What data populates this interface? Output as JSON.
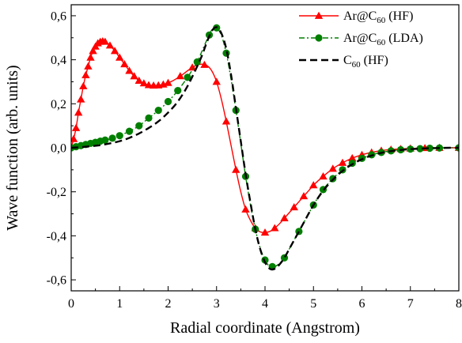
{
  "chart_data": {
    "type": "line",
    "xlabel": "Radial coordinate (Angstrom)",
    "ylabel": "Wave function (arb. units)",
    "xlim": [
      0,
      8
    ],
    "ylim": [
      -0.65,
      0.65
    ],
    "x_ticks": [
      0,
      1,
      2,
      3,
      4,
      5,
      6,
      7,
      8
    ],
    "y_ticks": [
      -0.6,
      -0.4,
      -0.2,
      0.0,
      0.2,
      0.4,
      0.6
    ],
    "x_tick_labels": [
      "0",
      "1",
      "2",
      "3",
      "4",
      "5",
      "6",
      "7",
      "8"
    ],
    "y_tick_labels": [
      "-0,6",
      "-0,4",
      "-0,2",
      "0,0",
      "0,2",
      "0,4",
      "0,6"
    ],
    "legend_position": "top-right",
    "grid": false,
    "series": [
      {
        "name": "Ar@C60 (HF)",
        "legend": {
          "pre": "Ar@C",
          "sub": "60",
          "post": " (HF)"
        },
        "color": "#ff0000",
        "line_style": "solid",
        "marker": "triangle",
        "x": [
          0.0,
          0.05,
          0.1,
          0.15,
          0.2,
          0.25,
          0.3,
          0.35,
          0.4,
          0.45,
          0.5,
          0.55,
          0.6,
          0.65,
          0.7,
          0.75,
          0.8,
          0.9,
          1.0,
          1.1,
          1.2,
          1.3,
          1.4,
          1.5,
          1.6,
          1.7,
          1.8,
          1.9,
          2.0,
          2.1,
          2.2,
          2.3,
          2.4,
          2.5,
          2.6,
          2.7,
          2.8,
          2.9,
          3.0,
          3.1,
          3.2,
          3.3,
          3.4,
          3.5,
          3.6,
          3.7,
          3.8,
          3.9,
          4.0,
          4.1,
          4.2,
          4.3,
          4.4,
          4.5,
          4.6,
          4.7,
          4.8,
          4.9,
          5.0,
          5.2,
          5.4,
          5.6,
          5.8,
          6.0,
          6.2,
          6.4,
          6.6,
          6.8,
          7.0,
          7.3,
          7.6,
          8.0
        ],
        "y": [
          0.0,
          0.04,
          0.09,
          0.16,
          0.22,
          0.28,
          0.33,
          0.37,
          0.41,
          0.44,
          0.46,
          0.475,
          0.482,
          0.484,
          0.482,
          0.475,
          0.465,
          0.44,
          0.41,
          0.38,
          0.35,
          0.325,
          0.305,
          0.293,
          0.285,
          0.283,
          0.284,
          0.288,
          0.295,
          0.305,
          0.318,
          0.333,
          0.35,
          0.365,
          0.376,
          0.38,
          0.374,
          0.35,
          0.3,
          0.22,
          0.12,
          0.01,
          -0.1,
          -0.2,
          -0.28,
          -0.33,
          -0.365,
          -0.382,
          -0.385,
          -0.38,
          -0.365,
          -0.345,
          -0.32,
          -0.295,
          -0.27,
          -0.245,
          -0.22,
          -0.195,
          -0.17,
          -0.13,
          -0.095,
          -0.068,
          -0.047,
          -0.032,
          -0.021,
          -0.013,
          -0.008,
          -0.005,
          -0.003,
          -0.001,
          0.0,
          0.0
        ],
        "markers_x": [
          0.05,
          0.1,
          0.15,
          0.2,
          0.25,
          0.3,
          0.35,
          0.4,
          0.45,
          0.5,
          0.55,
          0.6,
          0.65,
          0.7,
          0.8,
          0.9,
          1.0,
          1.1,
          1.2,
          1.3,
          1.4,
          1.5,
          1.6,
          1.7,
          1.8,
          1.9,
          2.0,
          2.25,
          2.5,
          2.75,
          3.0,
          3.2,
          3.4,
          3.6,
          3.8,
          4.0,
          4.2,
          4.4,
          4.6,
          4.8,
          5.0,
          5.2,
          5.4,
          5.6,
          5.8,
          6.0,
          6.2,
          6.4,
          6.6,
          6.8,
          7.0,
          7.3,
          7.6,
          8.0
        ]
      },
      {
        "name": "Ar@C60 (LDA)",
        "legend": {
          "pre": "Ar@C",
          "sub": "60",
          "post": " (LDA)"
        },
        "color": "#007f00",
        "line_style": "dashdot",
        "marker": "circle",
        "x": [
          0.0,
          0.2,
          0.4,
          0.6,
          0.8,
          1.0,
          1.2,
          1.4,
          1.6,
          1.8,
          2.0,
          2.2,
          2.4,
          2.6,
          2.7,
          2.8,
          2.9,
          3.0,
          3.1,
          3.2,
          3.3,
          3.4,
          3.5,
          3.6,
          3.7,
          3.8,
          3.9,
          4.0,
          4.1,
          4.2,
          4.3,
          4.4,
          4.5,
          4.6,
          4.8,
          5.0,
          5.2,
          5.4,
          5.6,
          5.8,
          6.0,
          6.2,
          6.4,
          6.6,
          6.8,
          7.0,
          7.2,
          7.4,
          7.6,
          7.8,
          8.0
        ],
        "y": [
          0.0,
          0.01,
          0.02,
          0.03,
          0.04,
          0.055,
          0.075,
          0.1,
          0.135,
          0.17,
          0.21,
          0.26,
          0.32,
          0.39,
          0.44,
          0.49,
          0.535,
          0.545,
          0.51,
          0.43,
          0.31,
          0.17,
          0.02,
          -0.13,
          -0.26,
          -0.37,
          -0.455,
          -0.51,
          -0.54,
          -0.54,
          -0.525,
          -0.5,
          -0.46,
          -0.42,
          -0.34,
          -0.26,
          -0.19,
          -0.14,
          -0.1,
          -0.07,
          -0.048,
          -0.032,
          -0.021,
          -0.014,
          -0.009,
          -0.006,
          -0.004,
          -0.002,
          -0.001,
          0.0,
          0.0
        ],
        "markers_x": [
          0.0,
          0.1,
          0.2,
          0.3,
          0.4,
          0.5,
          0.6,
          0.7,
          0.85,
          1.0,
          1.2,
          1.4,
          1.6,
          1.8,
          2.0,
          2.2,
          2.4,
          2.6,
          2.85,
          3.0,
          3.2,
          3.4,
          3.6,
          3.8,
          4.0,
          4.15,
          4.4,
          4.7,
          5.0,
          5.2,
          5.4,
          5.6,
          5.8,
          6.0,
          6.2,
          6.4,
          6.6,
          6.8,
          7.0,
          7.2,
          7.4,
          7.6,
          8.0
        ]
      },
      {
        "name": "C60 (HF)",
        "legend": {
          "pre": "C",
          "sub": "60",
          "post": " (HF)"
        },
        "color": "#000000",
        "line_style": "dashed",
        "marker": "none",
        "x": [
          0.0,
          0.2,
          0.4,
          0.6,
          0.8,
          1.0,
          1.2,
          1.4,
          1.6,
          1.8,
          2.0,
          2.2,
          2.4,
          2.6,
          2.7,
          2.8,
          2.9,
          3.0,
          3.1,
          3.2,
          3.3,
          3.4,
          3.5,
          3.6,
          3.7,
          3.8,
          3.9,
          4.0,
          4.1,
          4.2,
          4.3,
          4.4,
          4.5,
          4.6,
          4.8,
          5.0,
          5.2,
          5.4,
          5.6,
          5.8,
          6.0,
          6.2,
          6.4,
          6.6,
          6.8,
          7.0,
          7.2,
          7.4,
          7.6,
          7.8,
          8.0
        ],
        "y": [
          0.0,
          0.003,
          0.007,
          0.012,
          0.02,
          0.03,
          0.045,
          0.065,
          0.09,
          0.12,
          0.16,
          0.21,
          0.28,
          0.37,
          0.42,
          0.48,
          0.53,
          0.548,
          0.52,
          0.45,
          0.33,
          0.18,
          0.03,
          -0.12,
          -0.25,
          -0.37,
          -0.46,
          -0.52,
          -0.55,
          -0.55,
          -0.53,
          -0.5,
          -0.46,
          -0.42,
          -0.34,
          -0.26,
          -0.195,
          -0.145,
          -0.105,
          -0.075,
          -0.052,
          -0.035,
          -0.023,
          -0.015,
          -0.01,
          -0.006,
          -0.004,
          -0.002,
          -0.001,
          0.0,
          0.0
        ],
        "markers_x": []
      }
    ]
  }
}
